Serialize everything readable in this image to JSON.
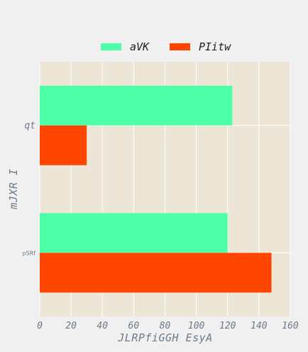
{
  "chart_data": {
    "type": "bar",
    "orientation": "horizontal",
    "title": "",
    "xlabel": "JLRPfiGGH EsyA",
    "ylabel": "mJXR I",
    "categories": [
      "pSRf",
      "qt"
    ],
    "series": [
      {
        "name": "aVK",
        "color": "#4dffa6",
        "values": [
          120,
          123
        ]
      },
      {
        "name": "PIitw",
        "color": "#ff4500",
        "values": [
          148,
          30
        ]
      }
    ],
    "xlim": [
      0,
      160
    ],
    "xticks": [
      "0",
      "20",
      "40",
      "60",
      "80",
      "100",
      "120",
      "140",
      "160"
    ],
    "grid": true,
    "legend_position": "top-center",
    "plot_background": "#ede6d6",
    "figure_background": "#f0f0f0"
  }
}
